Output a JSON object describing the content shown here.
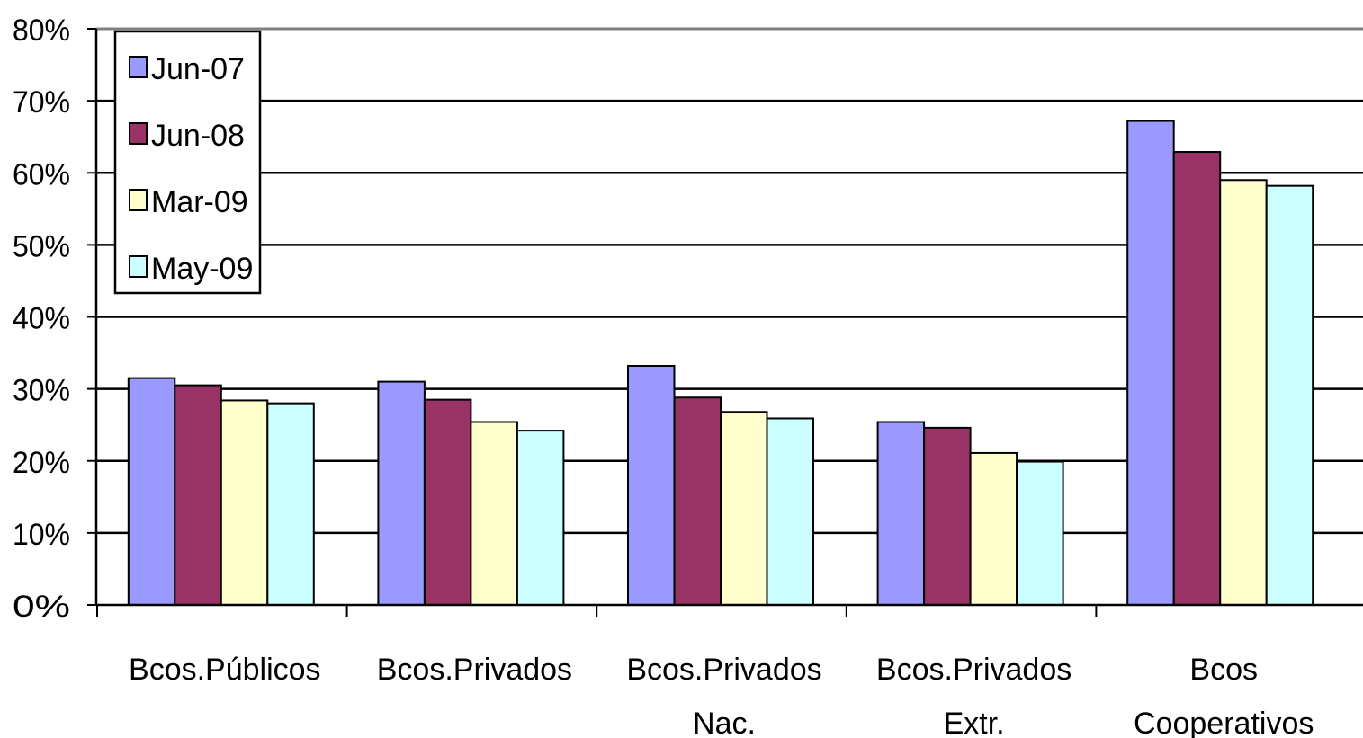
{
  "chart_data": {
    "type": "bar",
    "title": "",
    "xlabel": "",
    "ylabel": "",
    "ylim": [
      0,
      80
    ],
    "yticks": [
      0,
      10,
      20,
      30,
      40,
      50,
      60,
      70,
      80
    ],
    "ytick_labels": [
      "0%",
      "10%",
      "20%",
      "30%",
      "40%",
      "50%",
      "60%",
      "70%",
      "80%"
    ],
    "grid": true,
    "legend_position": "top-left",
    "categories": [
      [
        "Bcos.Públicos"
      ],
      [
        "Bcos.Privados"
      ],
      [
        "Bcos.Privados",
        "Nac."
      ],
      [
        "Bcos.Privados",
        "Extr."
      ],
      [
        "Bcos",
        "Cooperativos"
      ]
    ],
    "series": [
      {
        "name": "Jun-07",
        "color": "#9999ff",
        "values": [
          31.5,
          31.0,
          33.2,
          25.4,
          67.2
        ]
      },
      {
        "name": "Jun-08",
        "color": "#993366",
        "values": [
          30.5,
          28.5,
          28.8,
          24.6,
          62.9
        ]
      },
      {
        "name": "Mar-09",
        "color": "#ffffcc",
        "values": [
          28.4,
          25.4,
          26.8,
          21.1,
          59.0
        ]
      },
      {
        "name": "May-09",
        "color": "#ccffff",
        "values": [
          28.0,
          24.2,
          25.9,
          19.9,
          58.2
        ]
      }
    ]
  }
}
